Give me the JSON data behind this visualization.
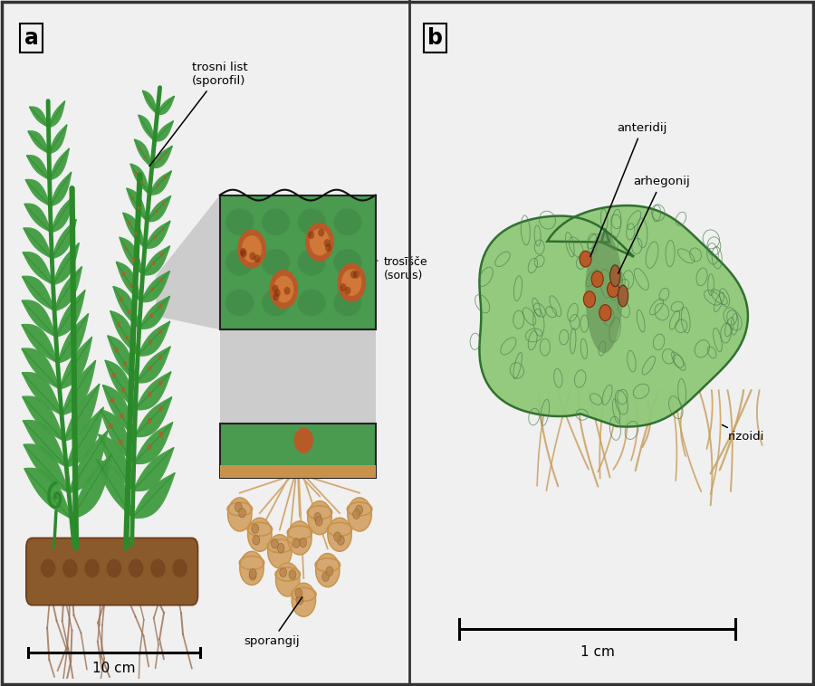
{
  "bg_color": "#f0f0f0",
  "panel_a_label": "a",
  "panel_b_label": "b",
  "label_trosni_list": "trosni list\n(sporofil)",
  "label_trosisce": "trosīšče\n(sorus)",
  "label_sporangij": "sporangij",
  "label_anteridij": "anteridij",
  "label_arhegonij": "arhegonij",
  "label_rizoidi": "rizoidi",
  "scale_a": "10 cm",
  "scale_b": "1 cm",
  "green_frond": "#3a9a3a",
  "green_frond2": "#2d8b2d",
  "green_light": "#6abf6a",
  "green_pale": "#a0d090",
  "green_inset": "#4a9a50",
  "green_proto": "#8fc878",
  "green_proto_dark": "#5a9050",
  "brown_rhiz": "#8b5a2b",
  "brown_rhiz2": "#6b3a1a",
  "brown_spor": "#d4a870",
  "brown_spor2": "#b8844a",
  "brown_spor3": "#c8924a",
  "sorus_color": "#b85a28",
  "sorus_light": "#d07838",
  "stem_color": "#2a8a2a",
  "root_color": "#9b7050",
  "rhizoid_color": "#c8a060",
  "gray_trap": "#c0c0c0"
}
